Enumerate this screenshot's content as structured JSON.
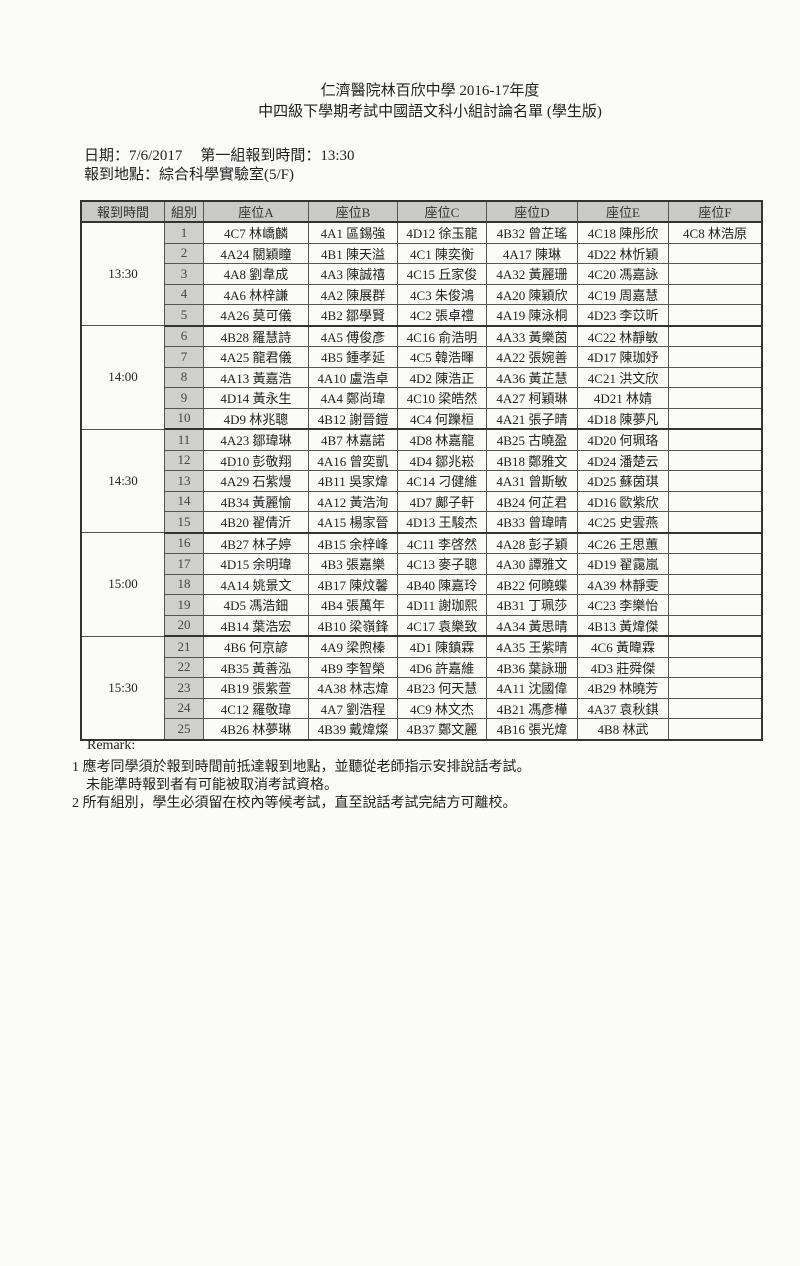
{
  "header": {
    "title_line1": "仁濟醫院林百欣中學 2016-17年度",
    "title_line2": "中四級下學期考試中國語文科小組討論名單 (學生版)",
    "date": "日期：7/6/2017",
    "first_group_time": "第一組報到時間：13:30",
    "location": "報到地點：綜合科學實驗室(5/F)"
  },
  "table": {
    "columns": [
      "報到時間",
      "組別",
      "座位A",
      "座位B",
      "座位C",
      "座位D",
      "座位E",
      "座位F"
    ],
    "blocks": [
      {
        "time": "13:30",
        "rows": [
          {
            "group": "1",
            "seats": [
              "4C7 林嶠麟",
              "4A1 區錫強",
              "4D12 徐玉龍",
              "4B32 曾芷瑤",
              "4C18 陳彤欣",
              "4C8 林浩原"
            ]
          },
          {
            "group": "2",
            "seats": [
              "4A24 關穎瞳",
              "4B1 陳天溢",
              "4C1 陳奕衡",
              "4A17 陳琳",
              "4D22 林忻穎",
              ""
            ]
          },
          {
            "group": "3",
            "seats": [
              "4A8 劉韋成",
              "4A3 陳誠禧",
              "4C15 丘家俊",
              "4A32 黃麗珊",
              "4C20 馮嘉詠",
              ""
            ]
          },
          {
            "group": "4",
            "seats": [
              "4A6 林梓謙",
              "4A2 陳展群",
              "4C3 朱俊鴻",
              "4A20 陳穎欣",
              "4C19 周嘉慧",
              ""
            ]
          },
          {
            "group": "5",
            "seats": [
              "4A26 莫可儀",
              "4B2 鄒學賢",
              "4C2 張卓禮",
              "4A19 陳泳桐",
              "4D23 李苡昕",
              ""
            ]
          }
        ]
      },
      {
        "time": "14:00",
        "rows": [
          {
            "group": "6",
            "seats": [
              "4B28 羅慧詩",
              "4A5 傅俊彥",
              "4C16 俞浩明",
              "4A33 黃樂茵",
              "4C22 林靜敏",
              ""
            ]
          },
          {
            "group": "7",
            "seats": [
              "4A25 龍君儀",
              "4B5 鍾孝延",
              "4C5 韓浩暉",
              "4A22 張婉善",
              "4D17 陳珈妤",
              ""
            ]
          },
          {
            "group": "8",
            "seats": [
              "4A13 黃嘉浩",
              "4A10 盧浩卓",
              "4D2 陳浩正",
              "4A36 黃芷慧",
              "4C21 洪文欣",
              ""
            ]
          },
          {
            "group": "9",
            "seats": [
              "4D14 黃永生",
              "4A4 鄭尚瑋",
              "4C10 梁皓然",
              "4A27 柯穎琳",
              "4D21 林婧",
              ""
            ]
          },
          {
            "group": "10",
            "seats": [
              "4D9 林兆聰",
              "4B12 謝晉鎧",
              "4C4 何躒桓",
              "4A21 張子晴",
              "4D18 陳夢凡",
              ""
            ]
          }
        ]
      },
      {
        "time": "14:30",
        "rows": [
          {
            "group": "11",
            "seats": [
              "4A23 鄒瑋琳",
              "4B7 林嘉諾",
              "4D8 林嘉龍",
              "4B25 古曉盈",
              "4D20 何珮珞",
              ""
            ]
          },
          {
            "group": "12",
            "seats": [
              "4D10 彭敬翔",
              "4A16 曾奕凱",
              "4D4 鄒兆崧",
              "4B18 鄭雅文",
              "4D24 潘楚云",
              ""
            ]
          },
          {
            "group": "13",
            "seats": [
              "4A29 石紫熳",
              "4B11 吳家煒",
              "4C14 刁健維",
              "4A31 曾斯敏",
              "4D25 蘇茵琪",
              ""
            ]
          },
          {
            "group": "14",
            "seats": [
              "4B34 黃麗愉",
              "4A12 黃浩洵",
              "4D7 鄺子軒",
              "4B24 何芷君",
              "4D16 歐紫欣",
              ""
            ]
          },
          {
            "group": "15",
            "seats": [
              "4B20 翟倩沂",
              "4A15 楊家晉",
              "4D13 王駿杰",
              "4B33 曾瑋晴",
              "4C25 史雲燕",
              ""
            ]
          }
        ]
      },
      {
        "time": "15:00",
        "rows": [
          {
            "group": "16",
            "seats": [
              "4B27 林子婷",
              "4B15 余梓峰",
              "4C11 李啓然",
              "4A28 彭子穎",
              "4C26 王思蕙",
              ""
            ]
          },
          {
            "group": "17",
            "seats": [
              "4D15 余明瑋",
              "4B3 張嘉樂",
              "4C13 麥子聰",
              "4A30 譚雅文",
              "4D19 翟靄嵐",
              ""
            ]
          },
          {
            "group": "18",
            "seats": [
              "4A14 姚景文",
              "4B17 陳炆馨",
              "4B40 陳嘉玲",
              "4B22 何曉蝶",
              "4A39 林靜雯",
              ""
            ]
          },
          {
            "group": "19",
            "seats": [
              "4D5 馮浩鈿",
              "4B4 張萬年",
              "4D11 謝珈熙",
              "4B31 丁珮莎",
              "4C23 李樂怡",
              ""
            ]
          },
          {
            "group": "20",
            "seats": [
              "4B14 葉浩宏",
              "4B10 梁嶺鋒",
              "4C17 袁樂致",
              "4A34 黃思晴",
              "4B13 黃煒傑",
              ""
            ]
          }
        ]
      },
      {
        "time": "15:30",
        "rows": [
          {
            "group": "21",
            "seats": [
              "4B6 何京諺",
              "4A9 梁煦榛",
              "4D1 陳鎮霖",
              "4A35 王紫晴",
              "4C6 黃暐霖",
              ""
            ]
          },
          {
            "group": "22",
            "seats": [
              "4B35 黃善泓",
              "4B9 李智榮",
              "4D6 許嘉維",
              "4B36 葉詠珊",
              "4D3 莊舜傑",
              ""
            ]
          },
          {
            "group": "23",
            "seats": [
              "4B19 張紫萱",
              "4A38 林志煒",
              "4B23 何天慧",
              "4A11 沈國偉",
              "4B29 林曉芳",
              ""
            ]
          },
          {
            "group": "24",
            "seats": [
              "4C12 羅敬瑋",
              "4A7 劉浩程",
              "4C9 林文杰",
              "4B21 馮彥樺",
              "4A37 袁秋錤",
              ""
            ]
          },
          {
            "group": "25",
            "seats": [
              "4B26 林夢琳",
              "4B39 戴煒燦",
              "4B37 鄭文麗",
              "4B16 張光煒",
              "4B8 林武",
              ""
            ]
          }
        ]
      }
    ]
  },
  "remarks": {
    "heading": "Remark:",
    "item1_line1": "1 應考同學須於報到時間前抵達報到地點，並聽從老師指示安排說話考試。",
    "item1_line2": "未能準時報到者有可能被取消考試資格。",
    "item2": "2 所有組別，學生必須留在校內等候考試，直至說話考試完結方可離校。"
  }
}
